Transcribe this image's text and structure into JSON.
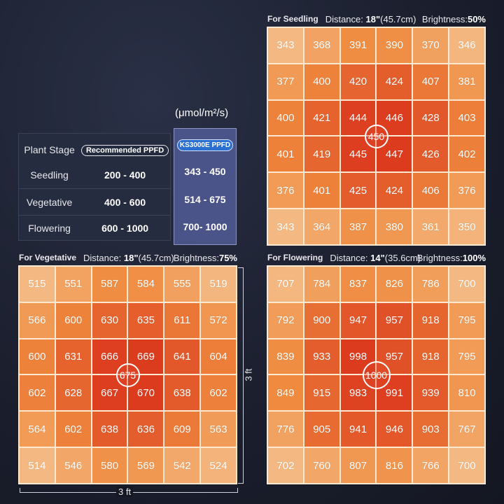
{
  "unit_label": "(μmol/m²/s)",
  "table": {
    "header_stage": "Plant Stage",
    "header_recommended": "Recommended PPFD",
    "header_product": "KS3000E PPFD",
    "rows": [
      {
        "stage": "Seedling",
        "recommended": "200 - 400",
        "product": "343 - 450"
      },
      {
        "stage": "Vegetative",
        "recommended": "400 - 600",
        "product": "514 - 675"
      },
      {
        "stage": "Flowering",
        "recommended": "600 - 1000",
        "product": "700- 1000"
      }
    ]
  },
  "dimension_labels": {
    "width": "3 ft",
    "height": "3 ft"
  },
  "colors": {
    "cell_light": "#f4b983",
    "cell_mid": "#ef8a3e",
    "cell_hot": "#dc3b1e",
    "grid_line": "#fde9d1",
    "product_highlight": "#4b5488"
  },
  "chart_data": [
    {
      "type": "heatmap",
      "stage_label": "For Seedling",
      "distance_label": "Distance:",
      "distance_value": "18\"",
      "distance_metric": "(45.7cm)",
      "brightness_label": "Brightness:",
      "brightness_value": "50%",
      "center_value": "450",
      "values": [
        [
          343,
          368,
          391,
          390,
          370,
          346
        ],
        [
          377,
          400,
          420,
          424,
          407,
          381
        ],
        [
          400,
          421,
          444,
          446,
          428,
          403
        ],
        [
          401,
          419,
          445,
          447,
          426,
          402
        ],
        [
          376,
          401,
          425,
          424,
          406,
          376
        ],
        [
          343,
          364,
          387,
          380,
          361,
          350
        ]
      ]
    },
    {
      "type": "heatmap",
      "stage_label": "For Vegetative",
      "distance_label": "Distance:",
      "distance_value": "18\"",
      "distance_metric": "(45.7cm)",
      "brightness_label": "Brightness:",
      "brightness_value": "75%",
      "center_value": "675",
      "values": [
        [
          515,
          551,
          587,
          584,
          555,
          519
        ],
        [
          566,
          600,
          630,
          635,
          611,
          572
        ],
        [
          600,
          631,
          666,
          669,
          641,
          604
        ],
        [
          602,
          628,
          667,
          670,
          638,
          602
        ],
        [
          564,
          602,
          638,
          636,
          609,
          563
        ],
        [
          514,
          546,
          580,
          569,
          542,
          524
        ]
      ]
    },
    {
      "type": "heatmap",
      "stage_label": "For Flowering",
      "distance_label": "Distance:",
      "distance_value": "14\"",
      "distance_metric": "(35.6cm)",
      "brightness_label": "Brightness:",
      "brightness_value": "100%",
      "center_value": "1000",
      "values": [
        [
          707,
          784,
          837,
          826,
          786,
          700
        ],
        [
          792,
          900,
          947,
          957,
          918,
          795
        ],
        [
          839,
          933,
          998,
          957,
          918,
          795
        ],
        [
          849,
          915,
          983,
          991,
          939,
          810
        ],
        [
          776,
          905,
          941,
          946,
          903,
          767
        ],
        [
          702,
          760,
          807,
          816,
          766,
          700
        ]
      ]
    }
  ]
}
